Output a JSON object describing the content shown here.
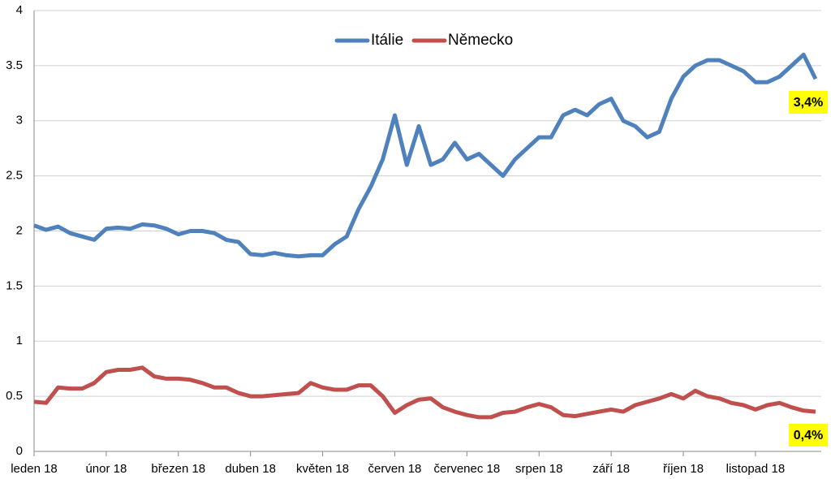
{
  "chart_data": {
    "type": "line",
    "categories": [
      "leden 18",
      null,
      null,
      null,
      null,
      null,
      "únor 18",
      null,
      null,
      null,
      null,
      null,
      "březen 18",
      null,
      null,
      null,
      null,
      null,
      "duben 18",
      null,
      null,
      null,
      null,
      null,
      "květen 18",
      null,
      null,
      null,
      null,
      null,
      "červen 18",
      null,
      null,
      null,
      null,
      null,
      "červenec 18",
      null,
      null,
      null,
      null,
      null,
      "srpen 18",
      null,
      null,
      null,
      null,
      null,
      "září 18",
      null,
      null,
      null,
      null,
      null,
      "říjen 18",
      null,
      null,
      null,
      null,
      null,
      "listopad 18",
      null,
      null,
      null,
      null,
      null
    ],
    "series": [
      {
        "name": "Itálie",
        "color": "#4f81bd",
        "values": [
          2.05,
          2.01,
          2.04,
          1.98,
          1.95,
          1.92,
          2.02,
          2.03,
          2.02,
          2.06,
          2.05,
          2.02,
          1.97,
          2.0,
          2.0,
          1.98,
          1.92,
          1.9,
          1.79,
          1.78,
          1.8,
          1.78,
          1.77,
          1.78,
          1.78,
          1.88,
          1.95,
          2.2,
          2.4,
          2.65,
          3.05,
          2.6,
          2.95,
          2.6,
          2.65,
          2.8,
          2.65,
          2.7,
          2.6,
          2.5,
          2.65,
          2.75,
          2.85,
          2.85,
          3.05,
          3.1,
          3.05,
          3.15,
          3.2,
          3.0,
          2.95,
          2.85,
          2.9,
          3.2,
          3.4,
          3.5,
          3.55,
          3.55,
          3.5,
          3.45,
          3.35,
          3.35,
          3.4,
          3.5,
          3.6,
          3.38
        ]
      },
      {
        "name": "Německo",
        "color": "#c0504d",
        "values": [
          0.45,
          0.44,
          0.58,
          0.57,
          0.57,
          0.62,
          0.72,
          0.74,
          0.74,
          0.76,
          0.68,
          0.66,
          0.66,
          0.65,
          0.62,
          0.58,
          0.58,
          0.53,
          0.5,
          0.5,
          0.51,
          0.52,
          0.53,
          0.62,
          0.58,
          0.56,
          0.56,
          0.6,
          0.6,
          0.5,
          0.35,
          0.42,
          0.47,
          0.48,
          0.4,
          0.36,
          0.33,
          0.31,
          0.31,
          0.35,
          0.36,
          0.4,
          0.43,
          0.4,
          0.33,
          0.32,
          0.34,
          0.36,
          0.38,
          0.36,
          0.42,
          0.45,
          0.48,
          0.52,
          0.48,
          0.55,
          0.5,
          0.48,
          0.44,
          0.42,
          0.38,
          0.42,
          0.44,
          0.4,
          0.37,
          0.36
        ]
      }
    ],
    "annotations": [
      "3,4%",
      "0,4%"
    ],
    "ylim": [
      0,
      4
    ],
    "yticks": [
      0,
      0.5,
      1,
      1.5,
      2,
      2.5,
      3,
      3.5,
      4
    ],
    "grid": true,
    "legend": "top"
  }
}
